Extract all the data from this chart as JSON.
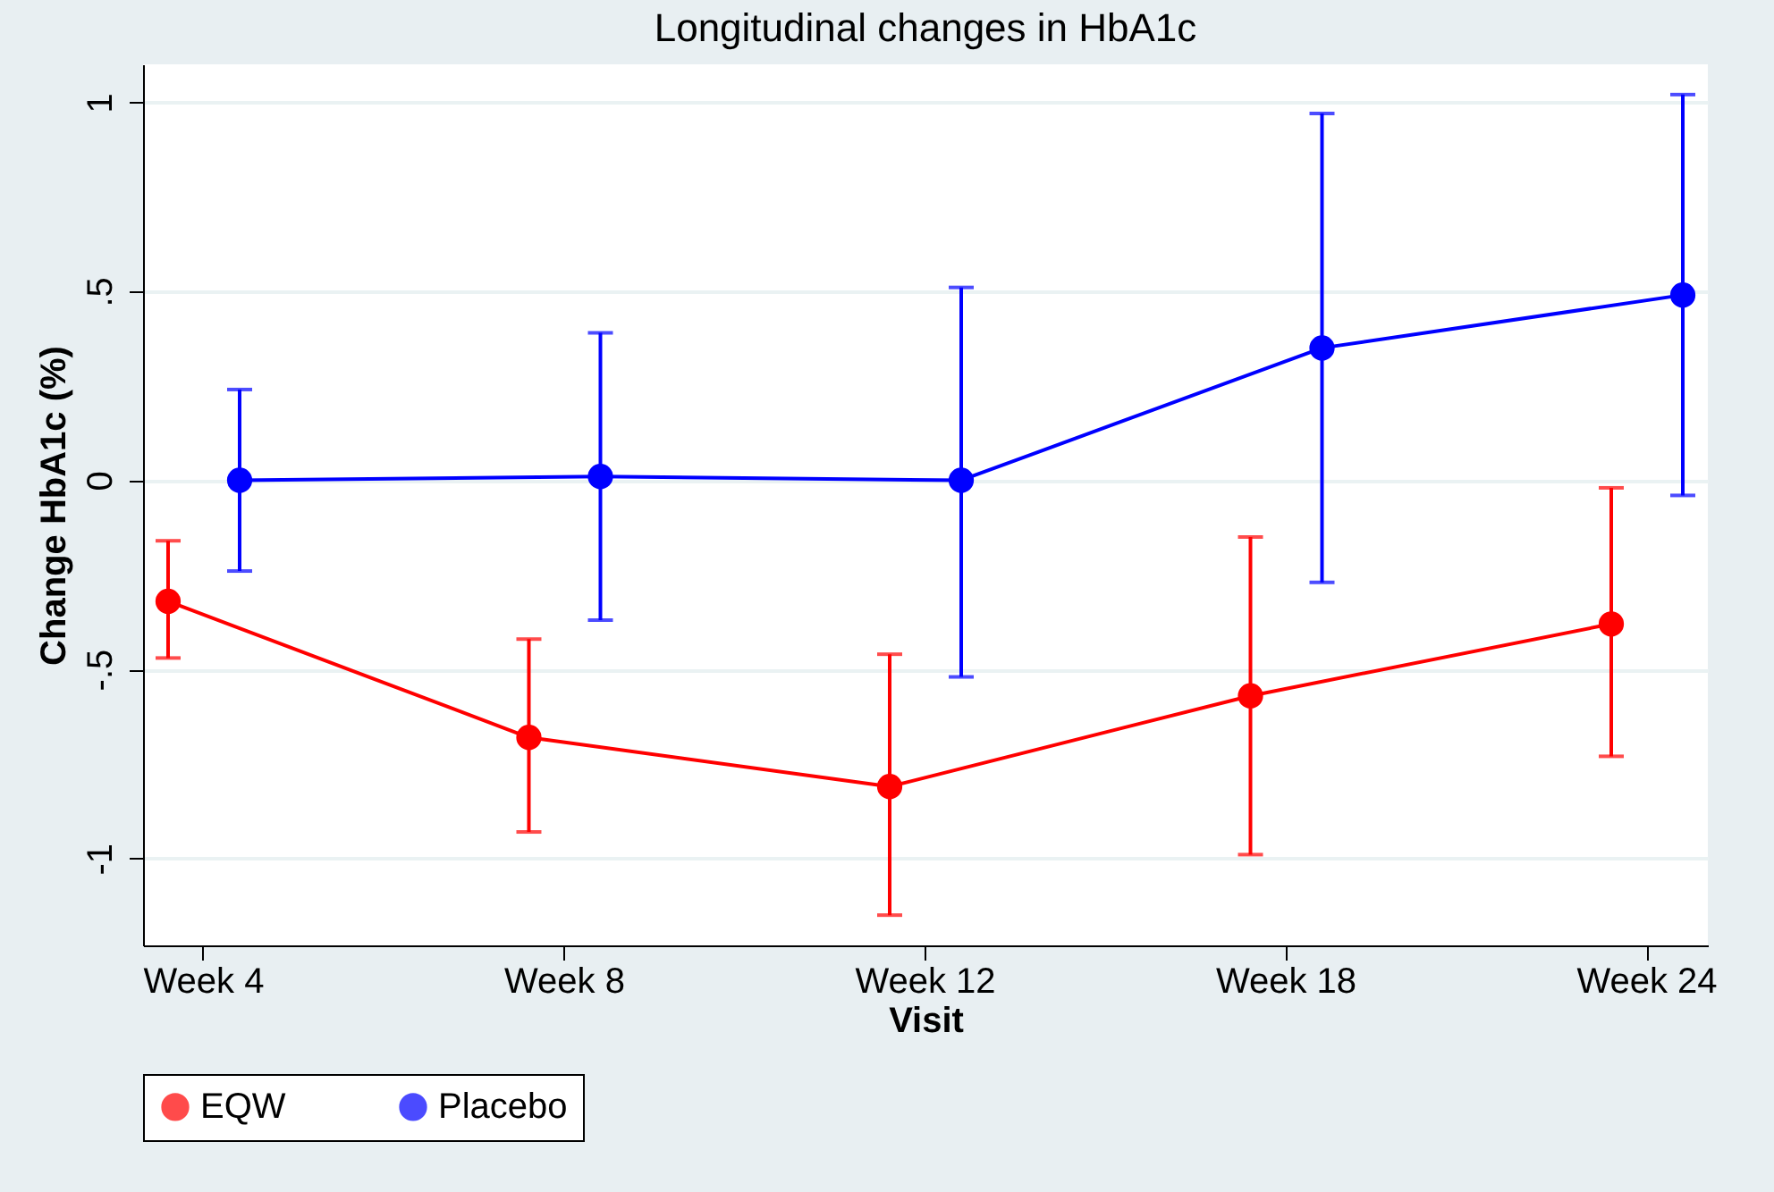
{
  "chart_data": {
    "type": "line",
    "title": "Longitudinal changes in HbA1c",
    "xlabel": "Visit",
    "ylabel": "Change HbA1c (%)",
    "categories": [
      "Week 4",
      "Week 8",
      "Week 12",
      "Week 18",
      "Week 24"
    ],
    "series": [
      {
        "name": "EQW",
        "color": "#ff0000",
        "values": [
          -0.32,
          -0.68,
          -0.81,
          -0.57,
          -0.38
        ],
        "errors": [
          [
            -0.47,
            -0.16
          ],
          [
            -0.93,
            -0.42
          ],
          [
            -1.15,
            -0.46
          ],
          [
            -0.99,
            -0.15
          ],
          [
            -0.73,
            -0.02
          ]
        ]
      },
      {
        "name": "Placebo",
        "color": "#0000ff",
        "values": [
          0,
          0.01,
          0,
          0.35,
          0.49
        ],
        "errors": [
          [
            -0.24,
            0.24
          ],
          [
            -0.37,
            0.39
          ],
          [
            -0.52,
            0.51
          ],
          [
            -0.27,
            0.97
          ],
          [
            -0.04,
            1.02
          ]
        ]
      }
    ],
    "ylim": [
      -1.23,
      1.1
    ],
    "yticks": [
      {
        "value": -1,
        "label": "-1"
      },
      {
        "value": -0.5,
        "label": "-.5"
      },
      0,
      {
        "value": 0.5,
        "label": ".5"
      },
      1
    ],
    "grid": "y",
    "legend": "bottom",
    "marker": "circle",
    "line_style": "solid"
  }
}
